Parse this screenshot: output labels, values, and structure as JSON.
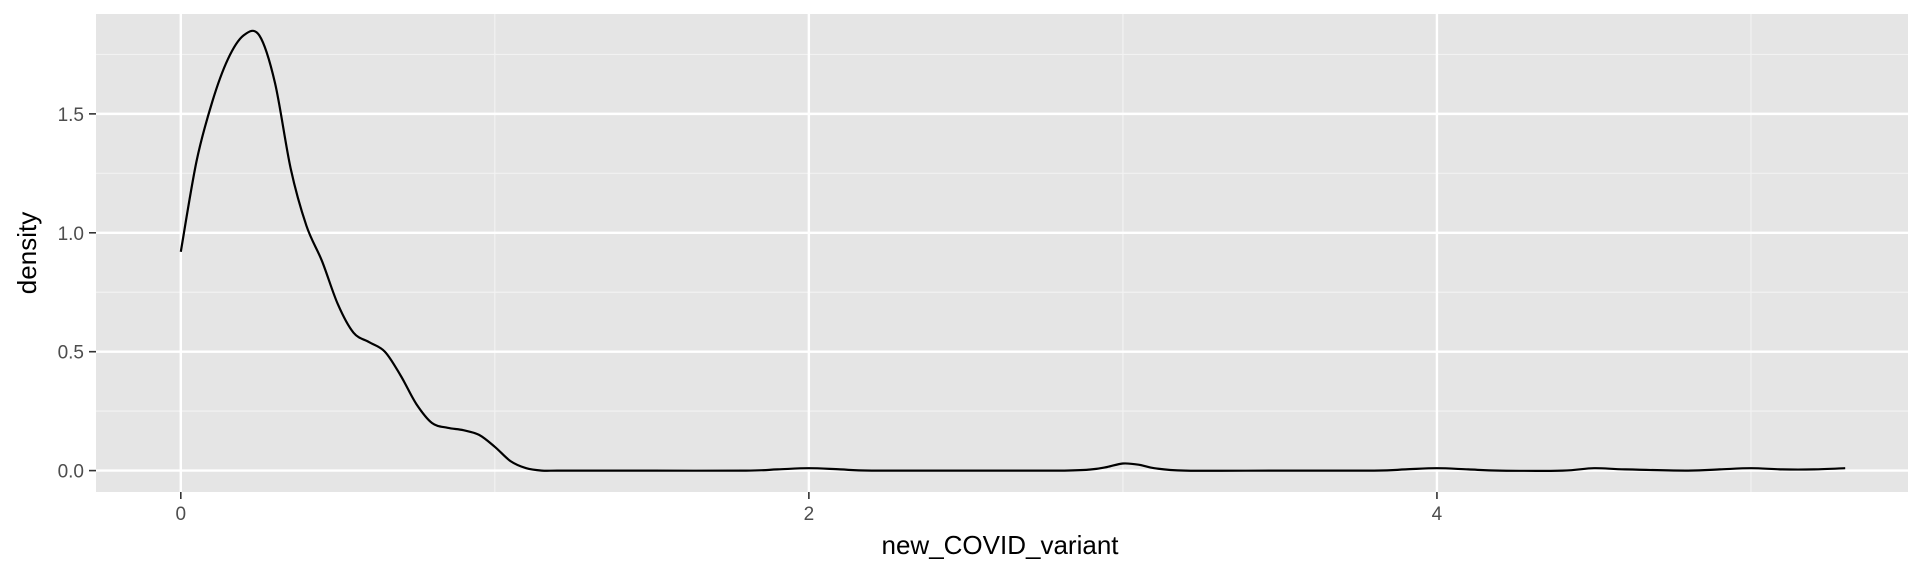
{
  "chart_data": {
    "type": "line",
    "title": "",
    "xlabel": "new_COVID_variant",
    "ylabel": "density",
    "xlim": [
      -0.27,
      5.5
    ],
    "ylim": [
      -0.09,
      1.92
    ],
    "x_ticks": [
      0,
      2,
      4
    ],
    "x_tick_labels": [
      "0",
      "2",
      "4"
    ],
    "x_minor_ticks": [
      1,
      3,
      5
    ],
    "y_ticks": [
      0.0,
      0.5,
      1.0,
      1.5
    ],
    "y_tick_labels": [
      "0.0",
      "0.5",
      "1.0",
      "1.5"
    ],
    "y_minor_ticks": [
      0.25,
      0.75,
      1.25,
      1.75
    ],
    "grid": true,
    "legend": "none",
    "colors": {
      "panel_background": "#e5e5e5",
      "grid_major": "#ffffff",
      "grid_minor": "#f2f2f2",
      "line": "#000000",
      "tick_text": "#4d4d4d",
      "axis_title": "#000000"
    },
    "series": [
      {
        "x": [
          0,
          0.05,
          0.1,
          0.15,
          0.2,
          0.25,
          0.3,
          0.35,
          0.4,
          0.45,
          0.5,
          0.55,
          0.6,
          0.65,
          0.7,
          0.75,
          0.8,
          0.85,
          0.9,
          0.95,
          1.0,
          1.05,
          1.1,
          1.15,
          1.2,
          1.3,
          1.5,
          1.8,
          1.9,
          2.0,
          2.1,
          2.2,
          2.5,
          2.8,
          2.9,
          2.95,
          3.0,
          3.05,
          3.1,
          3.2,
          3.5,
          3.8,
          3.9,
          4.0,
          4.1,
          4.2,
          4.4,
          4.5,
          4.6,
          4.8,
          4.9,
          5.0,
          5.1,
          5.2,
          5.3
        ],
        "y": [
          0.92,
          1.3,
          1.55,
          1.73,
          1.83,
          1.83,
          1.63,
          1.27,
          1.03,
          0.88,
          0.7,
          0.58,
          0.54,
          0.5,
          0.4,
          0.28,
          0.2,
          0.18,
          0.17,
          0.15,
          0.1,
          0.04,
          0.01,
          0.0,
          0.0,
          0.0,
          0.0,
          0.0,
          0.005,
          0.01,
          0.005,
          0.0,
          0.0,
          0.0,
          0.005,
          0.015,
          0.03,
          0.025,
          0.01,
          0.0,
          0.0,
          0.0,
          0.005,
          0.01,
          0.005,
          0.0,
          0.0,
          0.01,
          0.005,
          0.0,
          0.005,
          0.01,
          0.005,
          0.005,
          0.01
        ]
      }
    ]
  }
}
